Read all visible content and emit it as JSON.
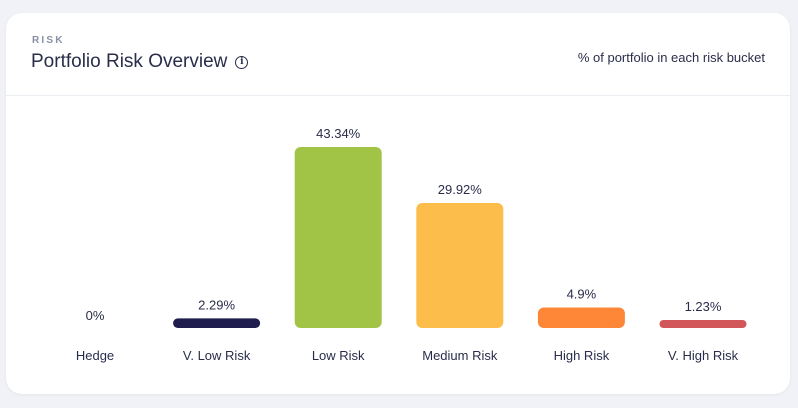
{
  "header": {
    "eyebrow": "RISK",
    "title": "Portfolio Risk Overview",
    "info_icon": "info-icon",
    "subtitle": "% of portfolio in each risk bucket"
  },
  "chart_data": {
    "type": "bar",
    "categories": [
      "Hedge",
      "V. Low Risk",
      "Low Risk",
      "Medium Risk",
      "High Risk",
      "V. High Risk"
    ],
    "values": [
      0,
      2.29,
      43.34,
      29.92,
      4.9,
      1.23
    ],
    "value_labels": [
      "0%",
      "2.29%",
      "43.34%",
      "29.92%",
      "4.9%",
      "1.23%"
    ],
    "colors": [
      "#1f1c4e",
      "#1f1c4e",
      "#a1c447",
      "#fdbd4a",
      "#fd8637",
      "#d2575a"
    ],
    "ylim": [
      0,
      43.34
    ],
    "grid": false,
    "legend": "none"
  }
}
